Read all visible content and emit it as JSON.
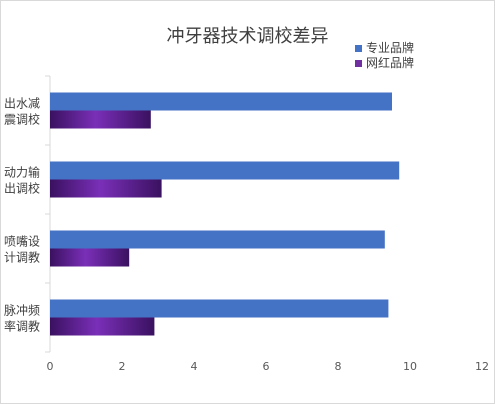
{
  "chart_data": {
    "type": "bar",
    "orientation": "horizontal",
    "title": "冲牙器技术调校差异",
    "categories": [
      "出水减\n震调校",
      "动力输\n出调校",
      "喷嘴设\n计调教",
      "脉冲频\n率调教"
    ],
    "series": [
      {
        "name": "专业品牌",
        "values": [
          9.5,
          9.7,
          9.3,
          9.4
        ],
        "color": "#4472c4"
      },
      {
        "name": "网红品牌",
        "values": [
          2.8,
          3.1,
          2.2,
          2.9
        ],
        "color": "#7030a0"
      }
    ],
    "xlim": [
      0,
      12
    ],
    "xticks": [
      "0",
      "2",
      "4",
      "6",
      "8",
      "10",
      "12"
    ],
    "grid": false,
    "legend_position": "top-right"
  }
}
